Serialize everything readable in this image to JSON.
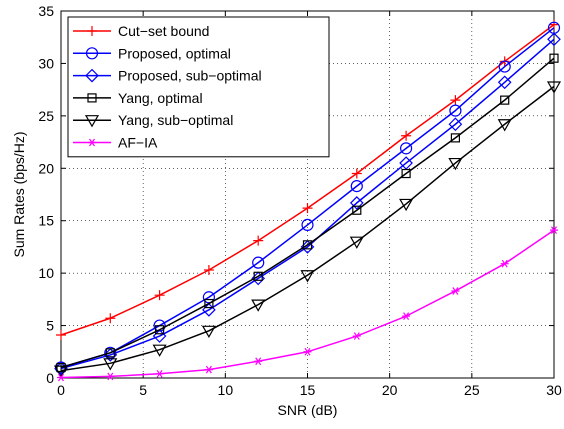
{
  "chart_data": {
    "type": "line",
    "xlabel": "SNR (dB)",
    "ylabel": "Sum Rates (bps/Hz)",
    "xlim": [
      0,
      30
    ],
    "ylim": [
      0,
      35
    ],
    "xticks": [
      0,
      5,
      10,
      15,
      20,
      25,
      30
    ],
    "yticks": [
      0,
      5,
      10,
      15,
      20,
      25,
      30,
      35
    ],
    "grid": true,
    "legend_position": "top-left",
    "x": [
      0,
      3,
      6,
      9,
      12,
      15,
      18,
      21,
      24,
      27,
      30
    ],
    "series": [
      {
        "name": "Cut−set bound",
        "color": "#ff0000",
        "marker": "plus",
        "values": [
          4.1,
          5.7,
          7.9,
          10.3,
          13.1,
          16.2,
          19.5,
          23.1,
          26.5,
          30.2,
          33.7
        ]
      },
      {
        "name": "Proposed, optimal",
        "color": "#0000ff",
        "marker": "circle",
        "values": [
          1.0,
          2.4,
          5.0,
          7.7,
          11.0,
          14.6,
          18.3,
          21.9,
          25.5,
          29.7,
          33.4
        ]
      },
      {
        "name": "Proposed, sub−optimal",
        "color": "#0000ff",
        "marker": "diamond",
        "values": [
          0.9,
          2.2,
          4.0,
          6.5,
          9.5,
          12.5,
          16.7,
          20.5,
          24.2,
          28.2,
          32.3
        ]
      },
      {
        "name": "Yang, optimal",
        "color": "#000000",
        "marker": "square",
        "values": [
          1.0,
          2.4,
          4.6,
          7.1,
          9.7,
          12.7,
          16.0,
          19.5,
          22.9,
          26.5,
          30.5
        ]
      },
      {
        "name": "Yang, sub−optimal",
        "color": "#000000",
        "marker": "triangle-down",
        "values": [
          0.7,
          1.4,
          2.7,
          4.5,
          7.0,
          9.8,
          13.0,
          16.6,
          20.5,
          24.2,
          27.8
        ]
      },
      {
        "name": "AF−IA",
        "color": "#ff00ff",
        "marker": "asterisk",
        "values": [
          0.05,
          0.15,
          0.4,
          0.8,
          1.6,
          2.5,
          4.0,
          5.9,
          8.3,
          10.9,
          14.1
        ]
      }
    ]
  }
}
